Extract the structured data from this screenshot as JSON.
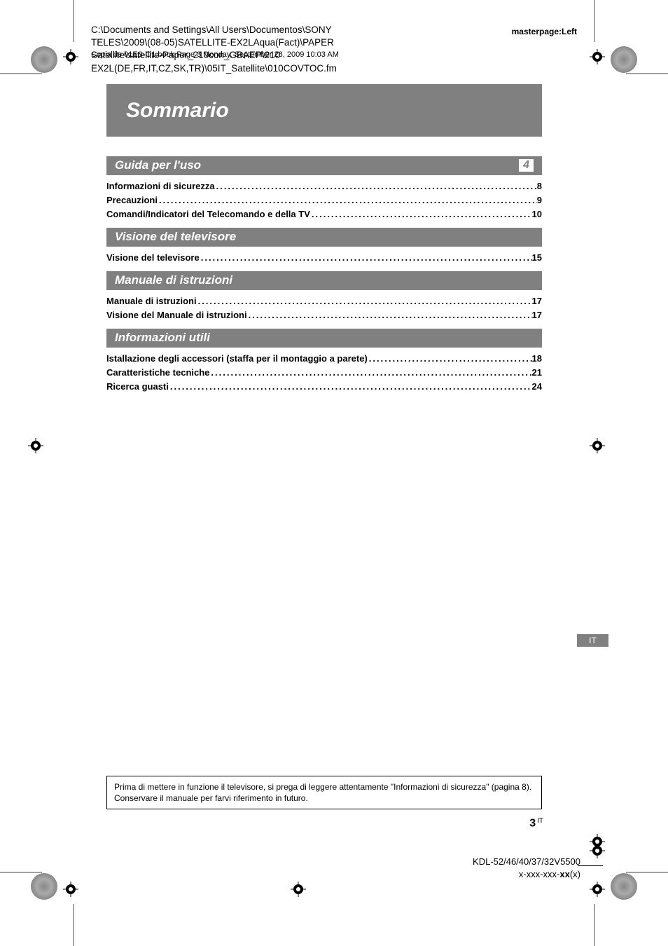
{
  "header": {
    "path_line1": "C:\\Documents and Settings\\All Users\\Documentos\\SONY",
    "path_line2": "TELES\\2009\\(08-05)SATELLITE-EX2LAqua(Fact)\\PAPER",
    "path_line3": "Satellite\\satellite-Paper_210con_GBAEP\\210",
    "path_line4": "EX2L(DE,FR,IT,CZ,SK,TR)\\05IT_Satellite\\010COVTOC.fm",
    "overprint": "Copia de 01ES-O1.book  Page 3  Monday, September 28, 2009  10:03 AM",
    "masterpage": "masterpage:Left"
  },
  "title": "Sommario",
  "sections": [
    {
      "header": "Guida per l'uso",
      "badge": "4",
      "rows": [
        {
          "label": "Informazioni di sicurezza",
          "page": "8"
        },
        {
          "label": "Precauzioni",
          "page": "9"
        },
        {
          "label": "Comandi/Indicatori del Telecomando e della TV",
          "page": "10"
        }
      ]
    },
    {
      "header": "Visione del televisore",
      "rows": [
        {
          "label": "Visione del televisore",
          "page": "15"
        }
      ]
    },
    {
      "header": "Manuale di istruzioni",
      "rows": [
        {
          "label": "Manuale di istruzioni",
          "page": "17"
        },
        {
          "label": "Visione del Manuale di istruzioni",
          "page": "17"
        }
      ]
    },
    {
      "header": "Informazioni utili",
      "rows": [
        {
          "label": "Istallazione degli accessori (staffa per il montaggio a parete)",
          "page": "18"
        },
        {
          "label": "Caratteristiche tecniche",
          "page": "21"
        },
        {
          "label": "Ricerca guasti",
          "page": "24"
        }
      ]
    }
  ],
  "language_tab": "IT",
  "notice": "Prima di mettere in funzione il televisore, si prega di leggere attentamente \"Informazioni di sicurezza\" (pagina 8). Conservare il manuale per farvi riferimento in futuro.",
  "page_number": "3",
  "page_suffix": "IT",
  "model": "KDL-52/46/40/37/32V5500",
  "part": {
    "prefix": "x-xxx-xxx-",
    "bold": "xx",
    "suffix": "(x)"
  },
  "colors": {
    "section_bg": "#808080",
    "section_text": "#ffffff",
    "page_bg": "#ffffff",
    "text": "#000000"
  }
}
